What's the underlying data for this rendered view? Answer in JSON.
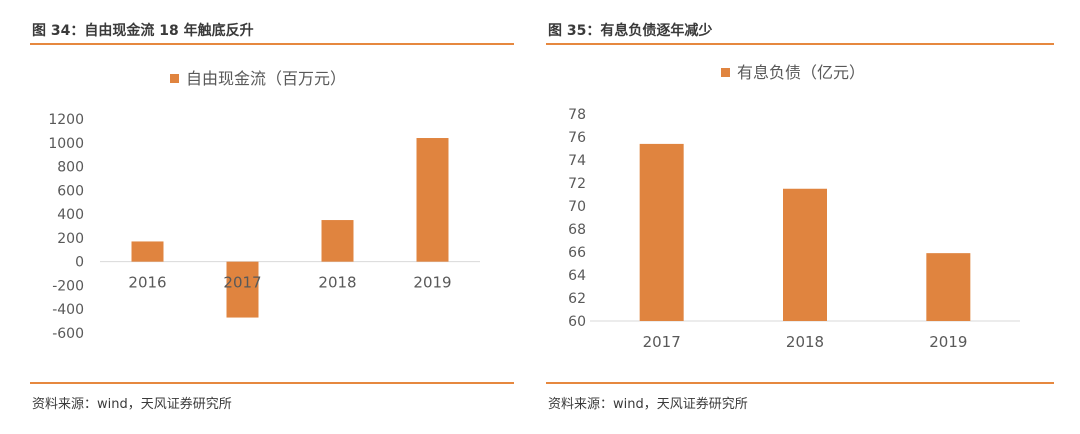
{
  "colors": {
    "accent": "#E6883F",
    "bar": "#E0843F",
    "axis": "#D9D9D9",
    "text": "#595959"
  },
  "figures": [
    {
      "title": "图 34：自由现金流 18 年触底反升",
      "source": "资料来源：wind，天风证券研究所"
    },
    {
      "title": "图 35：有息负债逐年减少",
      "source": "资料来源：wind，天风证券研究所"
    }
  ],
  "chart_data": [
    {
      "type": "bar",
      "categories": [
        "2016",
        "2017",
        "2018",
        "2019"
      ],
      "series": [
        {
          "name": "自由现金流（百万元）",
          "values": [
            170,
            -470,
            350,
            1040
          ]
        }
      ],
      "ylim": [
        -600,
        1200
      ],
      "yticks": [
        "1200",
        "1000",
        "800",
        "600",
        "400",
        "200",
        "0",
        "-200",
        "-400",
        "-600"
      ],
      "legend": "top-center",
      "grid": false
    },
    {
      "type": "bar",
      "categories": [
        "2017",
        "2018",
        "2019"
      ],
      "series": [
        {
          "name": "有息负债（亿元）",
          "values": [
            75.4,
            71.5,
            65.9
          ]
        }
      ],
      "ylim": [
        60,
        78
      ],
      "yticks": [
        "78",
        "76",
        "74",
        "72",
        "70",
        "68",
        "66",
        "64",
        "62",
        "60"
      ],
      "legend": "top-center",
      "grid": false
    }
  ]
}
